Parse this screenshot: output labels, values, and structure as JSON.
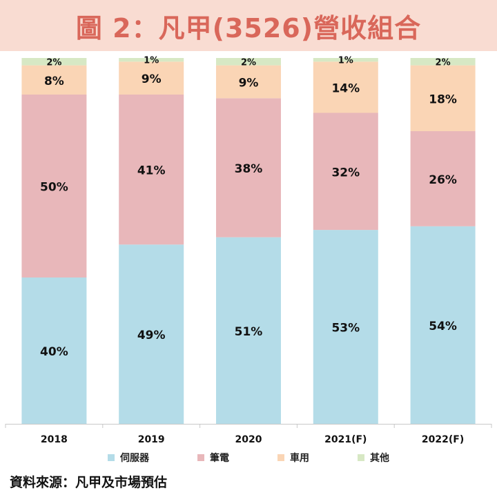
{
  "title": "圖 2：凡甲(3526)營收組合",
  "source": "資料來源：凡甲及市場預估",
  "colors": {
    "title_bg": "#f9dcd2",
    "title_text": "#d9675a",
    "series": [
      "#b4dce8",
      "#e8b7ba",
      "#fad5b5",
      "#d7e8c4"
    ]
  },
  "chart_data": {
    "type": "bar",
    "stacked": true,
    "percent": true,
    "categories": [
      "2018",
      "2019",
      "2020",
      "2021(F)",
      "2022(F)"
    ],
    "series": [
      {
        "name": "伺服器",
        "values": [
          40,
          49,
          51,
          53,
          54
        ]
      },
      {
        "name": "筆電",
        "values": [
          50,
          41,
          38,
          32,
          26
        ]
      },
      {
        "name": "車用",
        "values": [
          8,
          9,
          9,
          14,
          18
        ]
      },
      {
        "name": "其他",
        "values": [
          2,
          1,
          2,
          1,
          2
        ]
      }
    ],
    "value_suffix": "%",
    "ylim": [
      0,
      100
    ],
    "grid": false,
    "legend": "bottom"
  }
}
